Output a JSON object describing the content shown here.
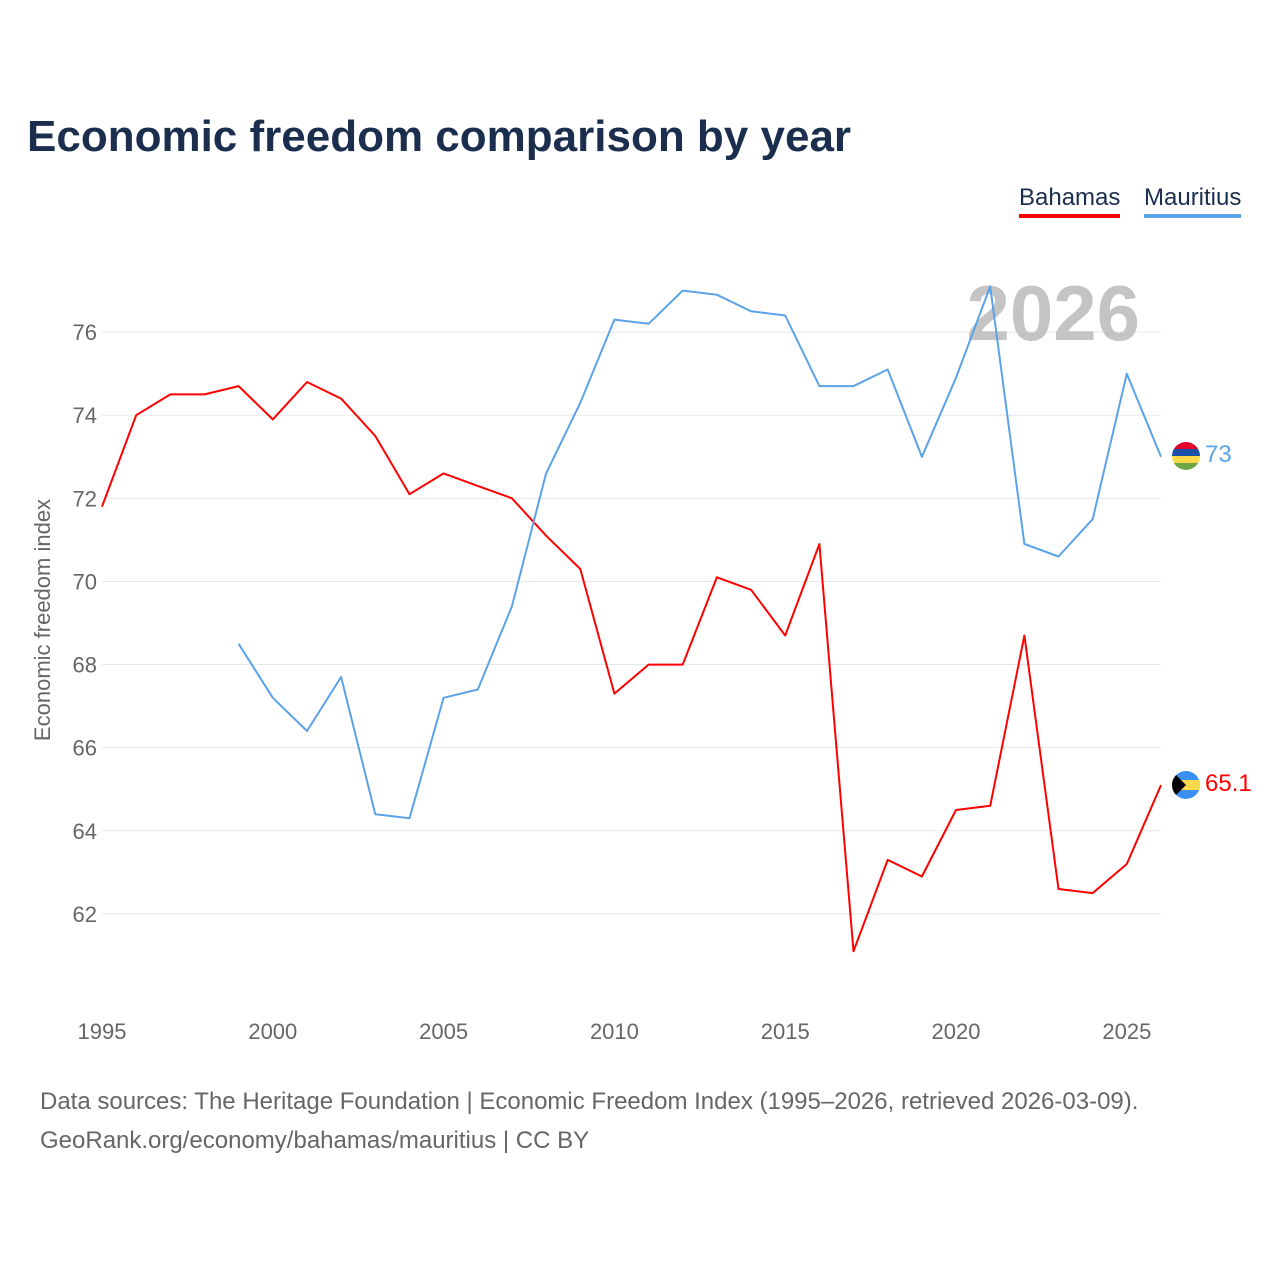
{
  "chart_data": {
    "type": "line",
    "title": "Economic freedom comparison by year",
    "ylabel": "Economic freedom index",
    "xlabel": "",
    "xlim": [
      1995,
      2026
    ],
    "ylim": [
      60,
      78
    ],
    "xticks": [
      1995,
      2000,
      2005,
      2010,
      2015,
      2020,
      2025
    ],
    "yticks": [
      62,
      64,
      66,
      68,
      70,
      72,
      74,
      76
    ],
    "grid": true,
    "legend_position": "top-right",
    "year_watermark": "2026",
    "series": [
      {
        "name": "Bahamas",
        "color": "#ff0000",
        "end_label": "65.1",
        "x": [
          1995,
          1996,
          1997,
          1998,
          1999,
          2000,
          2001,
          2002,
          2003,
          2004,
          2005,
          2006,
          2007,
          2008,
          2009,
          2010,
          2011,
          2012,
          2013,
          2014,
          2015,
          2016,
          2017,
          2018,
          2019,
          2020,
          2021,
          2022,
          2023,
          2024,
          2025,
          2026
        ],
        "values": [
          71.8,
          74.0,
          74.5,
          74.5,
          74.7,
          73.9,
          74.8,
          74.4,
          73.5,
          72.1,
          72.6,
          72.3,
          72.0,
          71.1,
          70.3,
          67.3,
          68.0,
          68.0,
          70.1,
          69.8,
          68.7,
          70.9,
          61.1,
          63.3,
          62.9,
          64.5,
          64.6,
          68.7,
          62.6,
          62.5,
          63.2,
          65.1
        ]
      },
      {
        "name": "Mauritius",
        "color": "#5ba3e8",
        "end_label": "73",
        "x": [
          1999,
          2000,
          2001,
          2002,
          2003,
          2004,
          2005,
          2006,
          2007,
          2008,
          2009,
          2010,
          2011,
          2012,
          2013,
          2014,
          2015,
          2016,
          2017,
          2018,
          2019,
          2020,
          2021,
          2022,
          2023,
          2024,
          2025,
          2026
        ],
        "values": [
          68.5,
          67.2,
          66.4,
          67.7,
          64.4,
          64.3,
          67.2,
          67.4,
          69.4,
          72.6,
          74.3,
          76.3,
          76.2,
          77.0,
          76.9,
          76.5,
          76.4,
          74.7,
          74.7,
          75.1,
          73.0,
          74.9,
          77.1,
          70.9,
          70.6,
          71.5,
          75.0,
          73.0
        ]
      }
    ]
  },
  "footer": {
    "line1": "Data sources: The Heritage Foundation | Economic Freedom Index (1995–2026, retrieved 2026-03-09).",
    "line2": "GeoRank.org/economy/bahamas/mauritius | CC BY"
  }
}
